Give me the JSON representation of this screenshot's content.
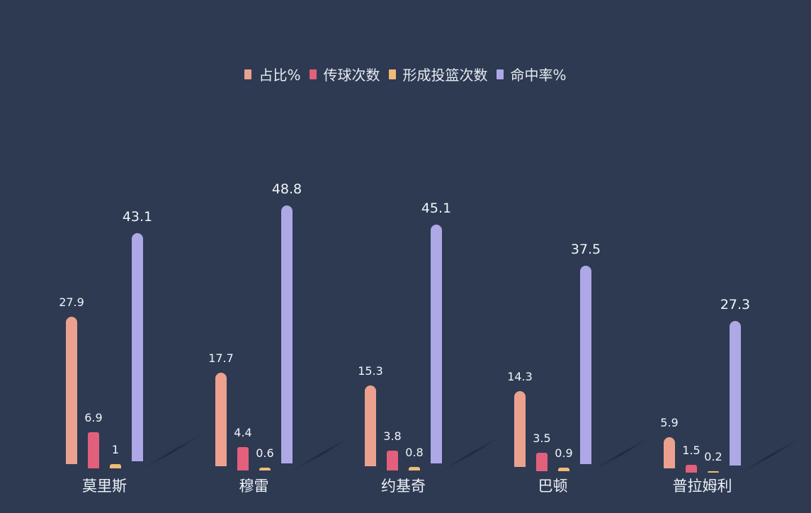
{
  "chart_data": {
    "type": "bar",
    "title": "",
    "xlabel": "",
    "ylabel": "",
    "categories": [
      "莫里斯",
      "穆雷",
      "约基奇",
      "巴顿",
      "普拉姆利"
    ],
    "series": [
      {
        "name": "占比%",
        "color": "#eba18e",
        "values": [
          27.9,
          17.7,
          15.3,
          14.3,
          5.9
        ]
      },
      {
        "name": "传球次数",
        "color": "#e2607c",
        "values": [
          6.9,
          4.4,
          3.8,
          3.5,
          1.5
        ]
      },
      {
        "name": "形成投篮次数",
        "color": "#f0bb77",
        "values": [
          1,
          0.6,
          0.8,
          0.9,
          0.2
        ]
      },
      {
        "name": "命中率%",
        "color": "#aea8e6",
        "values": [
          43.1,
          48.8,
          45.1,
          37.5,
          27.3
        ]
      }
    ],
    "grid": false,
    "legend_position": "top",
    "data_labels": true
  },
  "legend": [
    {
      "label": "占比%",
      "color": "#eba18e"
    },
    {
      "label": "传球次数",
      "color": "#e2607c"
    },
    {
      "label": "形成投篮次数",
      "color": "#f0bb77"
    },
    {
      "label": "命中率%",
      "color": "#aea8e6"
    }
  ],
  "background": "#2d3a52"
}
